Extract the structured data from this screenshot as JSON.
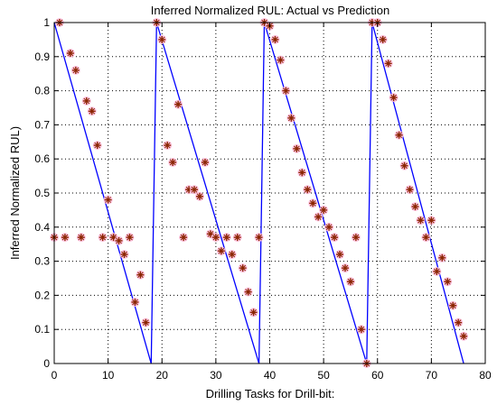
{
  "chart_data": {
    "type": "line",
    "title": "Inferred Normalized RUL: Actual vs Prediction",
    "xlabel": "Drilling Tasks for Drill-bit:",
    "ylabel": "Inferred Normalized RUL)",
    "xlim": [
      0,
      80
    ],
    "ylim": [
      0,
      1
    ],
    "xticks": [
      "0",
      "10",
      "20",
      "30",
      "40",
      "50",
      "60",
      "70",
      "80"
    ],
    "yticks": [
      "0",
      "0.1",
      "0.2",
      "0.3",
      "0.4",
      "0.5",
      "0.6",
      "0.7",
      "0.8",
      "0.9",
      "1"
    ],
    "grid": "dotted",
    "colors": {
      "actual": "#0000ff",
      "prediction_marker": "#8b2500",
      "prediction_halo": "#ffc0e0"
    },
    "series": [
      {
        "role": "actual",
        "style": "line",
        "x": [
          0,
          18,
          18.5,
          19,
          38,
          38.5,
          39,
          58,
          58.5,
          59,
          76
        ],
        "y": [
          1,
          0,
          0.5,
          1,
          0,
          0.5,
          1,
          0,
          0.5,
          1,
          0
        ]
      },
      {
        "role": "prediction",
        "style": "marker",
        "points": [
          [
            0,
            0.37
          ],
          [
            1,
            1.0
          ],
          [
            2,
            0.37
          ],
          [
            3,
            0.91
          ],
          [
            4,
            0.86
          ],
          [
            5,
            0.37
          ],
          [
            6,
            0.77
          ],
          [
            7,
            0.74
          ],
          [
            8,
            0.64
          ],
          [
            9,
            0.37
          ],
          [
            10,
            0.48
          ],
          [
            11,
            0.37
          ],
          [
            12,
            0.36
          ],
          [
            13,
            0.32
          ],
          [
            14,
            0.37
          ],
          [
            15,
            0.18
          ],
          [
            16,
            0.26
          ],
          [
            17,
            0.12
          ],
          [
            19,
            1.0
          ],
          [
            20,
            0.95
          ],
          [
            21,
            0.64
          ],
          [
            22,
            0.59
          ],
          [
            23,
            0.76
          ],
          [
            24,
            0.37
          ],
          [
            25,
            0.51
          ],
          [
            26,
            0.51
          ],
          [
            27,
            0.49
          ],
          [
            28,
            0.59
          ],
          [
            29,
            0.38
          ],
          [
            30,
            0.37
          ],
          [
            31,
            0.33
          ],
          [
            32,
            0.37
          ],
          [
            33,
            0.32
          ],
          [
            34,
            0.37
          ],
          [
            35,
            0.28
          ],
          [
            36,
            0.21
          ],
          [
            37,
            0.15
          ],
          [
            38,
            0.37
          ],
          [
            39,
            1.0
          ],
          [
            40,
            0.99
          ],
          [
            41,
            0.95
          ],
          [
            42,
            0.89
          ],
          [
            43,
            0.8
          ],
          [
            44,
            0.72
          ],
          [
            45,
            0.63
          ],
          [
            46,
            0.56
          ],
          [
            47,
            0.51
          ],
          [
            48,
            0.47
          ],
          [
            49,
            0.43
          ],
          [
            50,
            0.45
          ],
          [
            51,
            0.4
          ],
          [
            52,
            0.37
          ],
          [
            53,
            0.32
          ],
          [
            54,
            0.28
          ],
          [
            55,
            0.24
          ],
          [
            56,
            0.37
          ],
          [
            57,
            0.1
          ],
          [
            58,
            0.0
          ],
          [
            59,
            1.0
          ],
          [
            60,
            1.0
          ],
          [
            61,
            0.95
          ],
          [
            62,
            0.88
          ],
          [
            63,
            0.78
          ],
          [
            64,
            0.67
          ],
          [
            65,
            0.58
          ],
          [
            66,
            0.51
          ],
          [
            67,
            0.46
          ],
          [
            68,
            0.42
          ],
          [
            69,
            0.37
          ],
          [
            70,
            0.42
          ],
          [
            71,
            0.27
          ],
          [
            72,
            0.31
          ],
          [
            73,
            0.24
          ],
          [
            74,
            0.17
          ],
          [
            75,
            0.12
          ],
          [
            76,
            0.08
          ]
        ]
      }
    ]
  }
}
